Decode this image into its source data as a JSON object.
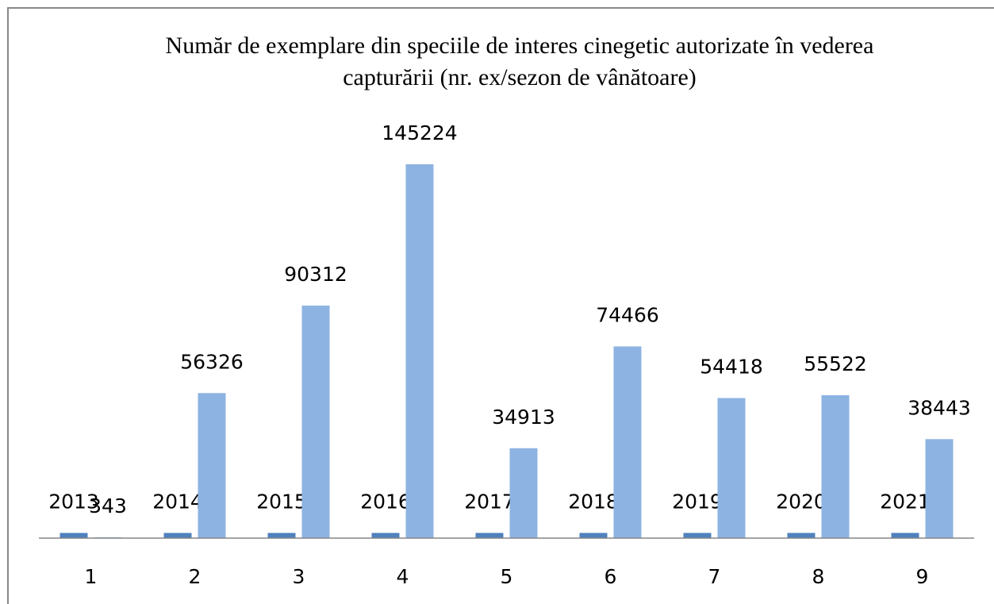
{
  "chart_data": {
    "type": "bar",
    "title": [
      "Număr de exemplare din speciile de interes cinegetic autorizate în vederea",
      "capturării (nr. ex/sezon de vânătoare)"
    ],
    "categories": [
      "1",
      "2",
      "3",
      "4",
      "5",
      "6",
      "7",
      "8",
      "9"
    ],
    "series": [
      {
        "color": "#4f81bd",
        "values": [
          2013,
          2014,
          2015,
          2016,
          2017,
          2018,
          2019,
          2020,
          2021
        ]
      },
      {
        "color": "#8db3e2",
        "values": [
          343,
          56326,
          90312,
          145224,
          34913,
          74466,
          54418,
          55522,
          38443
        ]
      }
    ],
    "ylim": [
      0,
      160000
    ]
  }
}
